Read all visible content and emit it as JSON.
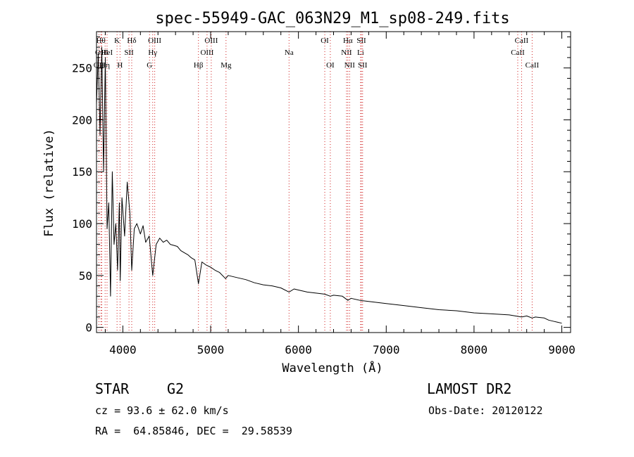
{
  "chart_data": {
    "type": "line",
    "title": "spec-55949-GAC_063N29_M1_sp08-249.fits",
    "xlabel": "Wavelength (Å)",
    "ylabel": "Flux (relative)",
    "xlim": [
      3700,
      9100
    ],
    "ylim": [
      -5,
      285
    ],
    "x_ticks": [
      4000,
      5000,
      6000,
      7000,
      8000,
      9000
    ],
    "y_ticks": [
      0,
      50,
      100,
      150,
      200,
      250
    ],
    "grid": false,
    "series": [
      {
        "x": [
          3700,
          3720,
          3740,
          3760,
          3780,
          3800,
          3820,
          3840,
          3860,
          3880,
          3900,
          3920,
          3940,
          3960,
          3970,
          3990,
          4020,
          4050,
          4080,
          4101,
          4130,
          4160,
          4200,
          4230,
          4260,
          4300,
          4340,
          4380,
          4420,
          4460,
          4500,
          4540,
          4580,
          4620,
          4660,
          4700,
          4740,
          4780,
          4820,
          4861,
          4900,
          4950,
          5000,
          5050,
          5100,
          5170,
          5200,
          5300,
          5400,
          5500,
          5600,
          5700,
          5800,
          5893,
          5950,
          6000,
          6100,
          6200,
          6300,
          6363,
          6400,
          6500,
          6563,
          6600,
          6700,
          6800,
          6900,
          7000,
          7200,
          7400,
          7600,
          7800,
          8000,
          8200,
          8400,
          8542,
          8600,
          8662,
          8700,
          8800,
          8850,
          8900,
          8950,
          9000
        ],
        "y": [
          215,
          265,
          185,
          270,
          150,
          260,
          95,
          120,
          30,
          150,
          80,
          100,
          55,
          120,
          45,
          125,
          88,
          140,
          110,
          55,
          95,
          100,
          90,
          98,
          82,
          88,
          50,
          80,
          86,
          82,
          84,
          80,
          79,
          78,
          74,
          72,
          70,
          67,
          65,
          42,
          63,
          60,
          58,
          55,
          53,
          47,
          50,
          48,
          46,
          43,
          41,
          40,
          38,
          34,
          37,
          36,
          34,
          33,
          32,
          30,
          31,
          30,
          26,
          28,
          26,
          25,
          24,
          23,
          21,
          19,
          17,
          16,
          14,
          13,
          12,
          10,
          11,
          9,
          10,
          9,
          7,
          6,
          5,
          4
        ]
      }
    ],
    "spectral_lines": [
      {
        "label": "OII",
        "wl": 3727,
        "row": 3
      },
      {
        "label": "Hθ",
        "wl": 3750,
        "row": 1
      },
      {
        "label": "OIII",
        "wl": 3760,
        "row": 2
      },
      {
        "label": "Hη",
        "wl": 3798,
        "row": 3
      },
      {
        "label": "HeI",
        "wl": 3820,
        "row": 2
      },
      {
        "label": "K",
        "wl": 3934,
        "row": 1
      },
      {
        "label": "H",
        "wl": 3968,
        "row": 3
      },
      {
        "label": "SII",
        "wl": 4070,
        "row": 2
      },
      {
        "label": "Hδ",
        "wl": 4101,
        "row": 1
      },
      {
        "label": "G",
        "wl": 4304,
        "row": 3
      },
      {
        "label": "Hγ",
        "wl": 4340,
        "row": 2
      },
      {
        "label": "OIII",
        "wl": 4363,
        "row": 1
      },
      {
        "label": "Hβ",
        "wl": 4861,
        "row": 3
      },
      {
        "label": "OIII",
        "wl": 4959,
        "row": 2
      },
      {
        "label": "OIII",
        "wl": 5007,
        "row": 1
      },
      {
        "label": "Mg",
        "wl": 5175,
        "row": 3
      },
      {
        "label": "Na",
        "wl": 5893,
        "row": 2
      },
      {
        "label": "OI",
        "wl": 6300,
        "row": 1
      },
      {
        "label": "OI",
        "wl": 6363,
        "row": 3
      },
      {
        "label": "NII",
        "wl": 6548,
        "row": 2
      },
      {
        "label": "Hα",
        "wl": 6563,
        "row": 1
      },
      {
        "label": "NII",
        "wl": 6583,
        "row": 3
      },
      {
        "label": "Li",
        "wl": 6708,
        "row": 2
      },
      {
        "label": "SII",
        "wl": 6717,
        "row": 1
      },
      {
        "label": "SII",
        "wl": 6731,
        "row": 3
      },
      {
        "label": "CaII",
        "wl": 8498,
        "row": 2
      },
      {
        "label": "CaII",
        "wl": 8542,
        "row": 1
      },
      {
        "label": "CaII",
        "wl": 8662,
        "row": 3
      }
    ],
    "line_color": "#000000",
    "marker_color": "#d02020"
  },
  "info": {
    "class": "STAR",
    "subclass": "G2",
    "survey": "LAMOST DR2",
    "cz": "cz = 93.6 ± 62.0 km/s",
    "obs_date": "Obs-Date: 20120122",
    "coords": "RA =  64.85846, DEC =  29.58539"
  }
}
